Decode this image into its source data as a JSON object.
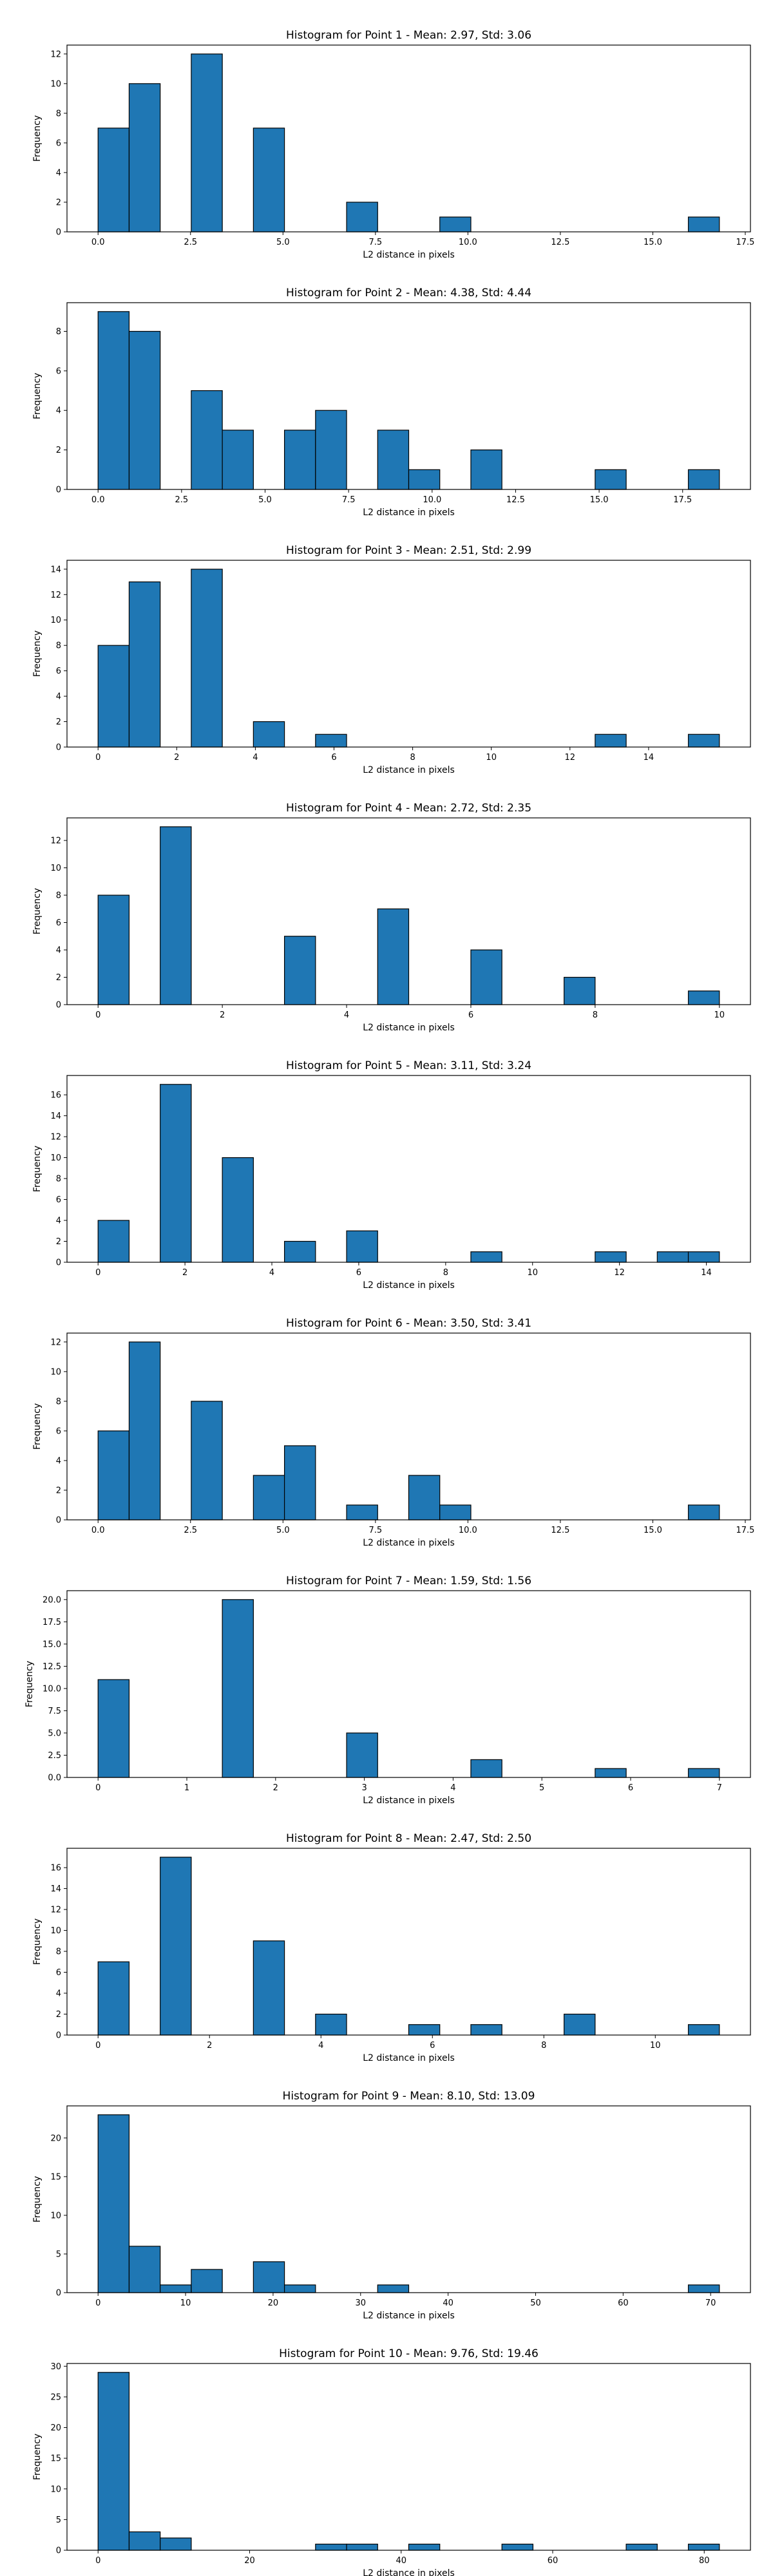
{
  "chart_data": [
    {
      "type": "bar",
      "title": "Histogram for Point 1 - Mean: 2.97, Std: 3.06",
      "xlabel": "L2 distance in pixels",
      "ylabel": "Frequency",
      "xlim": [
        -0.84,
        17.64
      ],
      "ylim": [
        0,
        12.6
      ],
      "xticks": [
        0,
        2.5,
        5,
        7.5,
        10,
        12.5,
        15,
        17.5
      ],
      "xtick_labels": [
        "0.0",
        "2.5",
        "5.0",
        "7.5",
        "10.0",
        "12.5",
        "15.0",
        "17.5"
      ],
      "yticks": [
        0,
        2,
        4,
        6,
        8,
        10,
        12
      ],
      "bin_edges": [
        0,
        0.84,
        1.68,
        2.52,
        3.36,
        4.2,
        5.04,
        5.88,
        6.72,
        7.56,
        8.4,
        9.24,
        10.08,
        10.92,
        11.76,
        12.6,
        13.44,
        14.28,
        15.12,
        15.96,
        16.8
      ],
      "counts": [
        7,
        10,
        0,
        12,
        0,
        7,
        0,
        0,
        2,
        0,
        0,
        1,
        0,
        0,
        0,
        0,
        0,
        0,
        0,
        1
      ]
    },
    {
      "type": "bar",
      "title": "Histogram for Point 2 - Mean: 4.38, Std: 4.44",
      "xlabel": "L2 distance in pixels",
      "ylabel": "Frequency",
      "xlim": [
        -0.93,
        19.53
      ],
      "ylim": [
        0,
        9.45
      ],
      "xticks": [
        0,
        2.5,
        5,
        7.5,
        10,
        12.5,
        15,
        17.5
      ],
      "xtick_labels": [
        "0.0",
        "2.5",
        "5.0",
        "7.5",
        "10.0",
        "12.5",
        "15.0",
        "17.5"
      ],
      "yticks": [
        0,
        2,
        4,
        6,
        8
      ],
      "bin_edges": [
        0,
        0.93,
        1.86,
        2.79,
        3.72,
        4.65,
        5.58,
        6.51,
        7.44,
        8.37,
        9.3,
        10.23,
        11.16,
        12.09,
        13.02,
        13.95,
        14.88,
        15.81,
        16.74,
        17.67,
        18.6
      ],
      "counts": [
        9,
        8,
        0,
        5,
        3,
        0,
        3,
        4,
        0,
        3,
        1,
        0,
        2,
        0,
        0,
        0,
        1,
        0,
        0,
        1
      ]
    },
    {
      "type": "bar",
      "title": "Histogram for Point 3 - Mean: 2.51, Std: 2.99",
      "xlabel": "L2 distance in pixels",
      "ylabel": "Frequency",
      "xlim": [
        -0.79,
        16.59
      ],
      "ylim": [
        0,
        14.7
      ],
      "xticks": [
        0,
        2,
        4,
        6,
        8,
        10,
        12,
        14
      ],
      "xtick_labels": [
        "0",
        "2",
        "4",
        "6",
        "8",
        "10",
        "12",
        "14"
      ],
      "yticks": [
        0,
        2,
        4,
        6,
        8,
        10,
        12,
        14
      ],
      "bin_edges": [
        0,
        0.79,
        1.58,
        2.37,
        3.16,
        3.95,
        4.74,
        5.53,
        6.32,
        7.11,
        7.9,
        8.69,
        9.48,
        10.27,
        11.06,
        11.85,
        12.64,
        13.43,
        14.22,
        15.01,
        15.8
      ],
      "counts": [
        8,
        13,
        0,
        14,
        0,
        2,
        0,
        1,
        0,
        0,
        0,
        0,
        0,
        0,
        0,
        0,
        1,
        0,
        0,
        1
      ]
    },
    {
      "type": "bar",
      "title": "Histogram for Point 4 - Mean: 2.72, Std: 2.35",
      "xlabel": "L2 distance in pixels",
      "ylabel": "Frequency",
      "xlim": [
        -0.5,
        10.5
      ],
      "ylim": [
        0,
        13.65
      ],
      "xticks": [
        0,
        2,
        4,
        6,
        8,
        10
      ],
      "xtick_labels": [
        "0",
        "2",
        "4",
        "6",
        "8",
        "10"
      ],
      "yticks": [
        0,
        2,
        4,
        6,
        8,
        10,
        12
      ],
      "bin_edges": [
        0,
        0.5,
        1,
        1.5,
        2,
        2.5,
        3,
        3.5,
        4,
        4.5,
        5,
        5.5,
        6,
        6.5,
        7,
        7.5,
        8,
        8.5,
        9,
        9.5,
        10
      ],
      "counts": [
        8,
        0,
        13,
        0,
        0,
        0,
        5,
        0,
        0,
        7,
        0,
        0,
        4,
        0,
        0,
        2,
        0,
        0,
        0,
        1
      ]
    },
    {
      "type": "bar",
      "title": "Histogram for Point 5 - Mean: 3.11, Std: 3.24",
      "xlabel": "L2 distance in pixels",
      "ylabel": "Frequency",
      "xlim": [
        -0.715,
        15.015
      ],
      "ylim": [
        0,
        17.85
      ],
      "xticks": [
        0,
        2,
        4,
        6,
        8,
        10,
        12,
        14
      ],
      "xtick_labels": [
        "0",
        "2",
        "4",
        "6",
        "8",
        "10",
        "12",
        "14"
      ],
      "yticks": [
        0,
        2,
        4,
        6,
        8,
        10,
        12,
        14,
        16
      ],
      "bin_edges": [
        0,
        0.715,
        1.43,
        2.145,
        2.86,
        3.575,
        4.29,
        5.005,
        5.72,
        6.435,
        7.15,
        7.865,
        8.58,
        9.295,
        10.01,
        10.725,
        11.44,
        12.155,
        12.87,
        13.585,
        14.3
      ],
      "counts": [
        4,
        0,
        17,
        0,
        10,
        0,
        2,
        0,
        3,
        0,
        0,
        0,
        1,
        0,
        0,
        0,
        1,
        0,
        1,
        1
      ]
    },
    {
      "type": "bar",
      "title": "Histogram for Point 6 - Mean: 3.50, Std: 3.41",
      "xlabel": "L2 distance in pixels",
      "ylabel": "Frequency",
      "xlim": [
        -0.84,
        17.64
      ],
      "ylim": [
        0,
        12.6
      ],
      "xticks": [
        0,
        2.5,
        5,
        7.5,
        10,
        12.5,
        15,
        17.5
      ],
      "xtick_labels": [
        "0.0",
        "2.5",
        "5.0",
        "7.5",
        "10.0",
        "12.5",
        "15.0",
        "17.5"
      ],
      "yticks": [
        0,
        2,
        4,
        6,
        8,
        10,
        12
      ],
      "bin_edges": [
        0,
        0.84,
        1.68,
        2.52,
        3.36,
        4.2,
        5.04,
        5.88,
        6.72,
        7.56,
        8.4,
        9.24,
        10.08,
        10.92,
        11.76,
        12.6,
        13.44,
        14.28,
        15.12,
        15.96,
        16.8
      ],
      "counts": [
        6,
        12,
        0,
        8,
        0,
        3,
        5,
        0,
        1,
        0,
        3,
        1,
        0,
        0,
        0,
        0,
        0,
        0,
        0,
        1
      ]
    },
    {
      "type": "bar",
      "title": "Histogram for Point 7 - Mean: 1.59, Std: 1.56",
      "xlabel": "L2 distance in pixels",
      "ylabel": "Frequency",
      "xlim": [
        -0.35,
        7.35
      ],
      "ylim": [
        0,
        21
      ],
      "xticks": [
        0,
        1,
        2,
        3,
        4,
        5,
        6,
        7
      ],
      "xtick_labels": [
        "0",
        "1",
        "2",
        "3",
        "4",
        "5",
        "6",
        "7"
      ],
      "yticks": [
        0,
        2.5,
        5,
        7.5,
        10,
        12.5,
        15,
        17.5,
        20
      ],
      "ytick_labels": [
        "0.0",
        "2.5",
        "5.0",
        "7.5",
        "10.0",
        "12.5",
        "15.0",
        "17.5",
        "20.0"
      ],
      "bin_edges": [
        0,
        0.35,
        0.7,
        1.05,
        1.4,
        1.75,
        2.1,
        2.45,
        2.8,
        3.15,
        3.5,
        3.85,
        4.2,
        4.55,
        4.9,
        5.25,
        5.6,
        5.95,
        6.3,
        6.65,
        7
      ],
      "counts": [
        11,
        0,
        0,
        0,
        20,
        0,
        0,
        0,
        5,
        0,
        0,
        0,
        2,
        0,
        0,
        0,
        1,
        0,
        0,
        1
      ]
    },
    {
      "type": "bar",
      "title": "Histogram for Point 8 - Mean: 2.47, Std: 2.50",
      "xlabel": "L2 distance in pixels",
      "ylabel": "Frequency",
      "xlim": [
        -0.5575,
        11.7075
      ],
      "ylim": [
        0,
        17.85
      ],
      "xticks": [
        0,
        2,
        4,
        6,
        8,
        10
      ],
      "xtick_labels": [
        "0",
        "2",
        "4",
        "6",
        "8",
        "10"
      ],
      "yticks": [
        0,
        2,
        4,
        6,
        8,
        10,
        12,
        14,
        16
      ],
      "bin_edges": [
        0,
        0.5575,
        1.115,
        1.6725,
        2.23,
        2.7875,
        3.345,
        3.9025,
        4.46,
        5.0175,
        5.575,
        6.1325,
        6.69,
        7.2475,
        7.805,
        8.3625,
        8.92,
        9.4775,
        10.035,
        10.5925,
        11.15
      ],
      "counts": [
        7,
        0,
        17,
        0,
        0,
        9,
        0,
        2,
        0,
        0,
        1,
        0,
        1,
        0,
        0,
        2,
        0,
        0,
        0,
        1
      ]
    },
    {
      "type": "bar",
      "title": "Histogram for Point 9 - Mean: 8.10, Std: 13.09",
      "xlabel": "L2 distance in pixels",
      "ylabel": "Frequency",
      "xlim": [
        -3.55,
        74.55
      ],
      "ylim": [
        0,
        24.15
      ],
      "xticks": [
        0,
        10,
        20,
        30,
        40,
        50,
        60,
        70
      ],
      "xtick_labels": [
        "0",
        "10",
        "20",
        "30",
        "40",
        "50",
        "60",
        "70"
      ],
      "yticks": [
        0,
        5,
        10,
        15,
        20
      ],
      "bin_edges": [
        0,
        3.55,
        7.1,
        10.65,
        14.2,
        17.75,
        21.3,
        24.85,
        28.4,
        31.95,
        35.5,
        39.05,
        42.6,
        46.15,
        49.7,
        53.25,
        56.8,
        60.35,
        63.9,
        67.45,
        71
      ],
      "counts": [
        23,
        6,
        1,
        3,
        0,
        4,
        1,
        0,
        0,
        1,
        0,
        0,
        0,
        0,
        0,
        0,
        0,
        0,
        0,
        1
      ]
    },
    {
      "type": "bar",
      "title": "Histogram for Point 10 - Mean: 9.76, Std: 19.46",
      "xlabel": "L2 distance in pixels",
      "ylabel": "Frequency",
      "xlim": [
        -4.1,
        86.1
      ],
      "ylim": [
        0,
        30.45
      ],
      "xticks": [
        0,
        20,
        40,
        60,
        80
      ],
      "xtick_labels": [
        "0",
        "20",
        "40",
        "60",
        "80"
      ],
      "yticks": [
        0,
        5,
        10,
        15,
        20,
        25,
        30
      ],
      "bin_edges": [
        0,
        4.1,
        8.2,
        12.3,
        16.4,
        20.5,
        24.6,
        28.7,
        32.8,
        36.9,
        41,
        45.1,
        49.2,
        53.3,
        57.4,
        61.5,
        65.6,
        69.7,
        73.8,
        77.9,
        82
      ],
      "counts": [
        29,
        3,
        2,
        0,
        0,
        0,
        0,
        1,
        1,
        0,
        1,
        0,
        0,
        1,
        0,
        0,
        0,
        1,
        0,
        1
      ]
    }
  ]
}
